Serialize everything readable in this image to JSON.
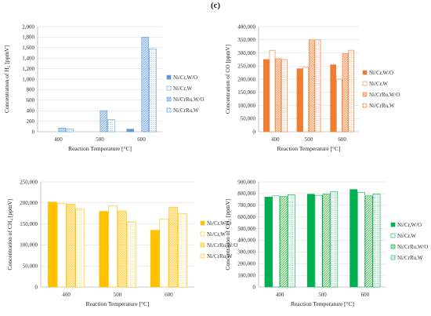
{
  "figure_label": "(c)",
  "chart_data": [
    {
      "type": "bar",
      "ylabel": "Concentration of H₂ [ppmV]",
      "xlabel": "Reaction Temperature [°C]",
      "categories": [
        "400",
        "500",
        "600"
      ],
      "ylim": [
        0,
        2000
      ],
      "ystep": 200,
      "ytick_labels": [
        "0",
        "200",
        "400",
        "600",
        "800",
        "1,000",
        "1,200",
        "1,400",
        "1,600",
        "1,800",
        "2,000"
      ],
      "grid": true,
      "legend_position": "right",
      "fill_color": "#9dc3e6",
      "edge_color": "#5b9bd5",
      "series": [
        {
          "name": "Ni/Cr,W/O",
          "style": "solid",
          "values": [
            0,
            0,
            50
          ]
        },
        {
          "name": "Ni/Cr,W",
          "style": "open",
          "values": [
            0,
            0,
            0
          ]
        },
        {
          "name": "Ni/CrRu,W/O",
          "style": "hatch",
          "values": [
            70,
            400,
            1800
          ]
        },
        {
          "name": "Ni/CrRu,W",
          "style": "dotted",
          "values": [
            50,
            230,
            1580
          ]
        }
      ]
    },
    {
      "type": "bar",
      "ylabel": "Concentration of CO [ppmV]",
      "xlabel": "Reaction Temperature [°C]",
      "categories": [
        "400",
        "500",
        "600"
      ],
      "ylim": [
        0,
        400000
      ],
      "ystep": 50000,
      "ytick_labels": [
        "0",
        "50,000",
        "100,000",
        "150,000",
        "200,000",
        "250,000",
        "300,000",
        "350,000",
        "400,000"
      ],
      "grid": true,
      "legend_position": "right",
      "fill_color": "#f4b183",
      "edge_color": "#ed7d31",
      "series": [
        {
          "name": "Ni/Cr,W/O",
          "style": "solid",
          "values": [
            275000,
            240000,
            255000
          ]
        },
        {
          "name": "Ni/Cr,W",
          "style": "open",
          "values": [
            310000,
            245000,
            200000
          ]
        },
        {
          "name": "Ni/CrRu,W/O",
          "style": "hatch",
          "values": [
            278000,
            350000,
            298000
          ]
        },
        {
          "name": "Ni/CrRu,W",
          "style": "dotted",
          "values": [
            275000,
            350000,
            310000
          ]
        }
      ]
    },
    {
      "type": "bar",
      "ylabel": "Concentration of CH₄  [ppmV]",
      "xlabel": "Reaction Temperature [°C]",
      "categories": [
        "400",
        "500",
        "600"
      ],
      "ylim": [
        0,
        250000
      ],
      "ystep": 50000,
      "ytick_labels": [
        "0",
        "50,000",
        "100,000",
        "150,000",
        "200,000",
        "250,000"
      ],
      "grid": true,
      "legend_position": "right",
      "fill_color": "#ffd966",
      "edge_color": "#ffc000",
      "series": [
        {
          "name": "Ni/Cr,W/O",
          "style": "solid",
          "values": [
            202000,
            180000,
            135000
          ]
        },
        {
          "name": "Ni/Cr,W",
          "style": "open",
          "values": [
            198000,
            193000,
            162000
          ]
        },
        {
          "name": "Ni/CrRu,W/O",
          "style": "hatch",
          "values": [
            197000,
            181000,
            190000
          ]
        },
        {
          "name": "Ni/CrRu,W",
          "style": "dotted",
          "values": [
            185000,
            155000,
            175000
          ]
        }
      ]
    },
    {
      "type": "bar",
      "ylabel": "Concentration of  CO₂ [ppmV]",
      "xlabel": "Reaction Temperature [°C]",
      "categories": [
        "400",
        "500",
        "600"
      ],
      "ylim": [
        0,
        900000
      ],
      "ystep": 100000,
      "ytick_labels": [
        "0",
        "100,000",
        "200,000",
        "300,000",
        "400,000",
        "500,000",
        "600,000",
        "700,000",
        "800,000",
        "900,000"
      ],
      "grid": true,
      "legend_position": "right",
      "fill_color": "#a9d18e",
      "edge_color": "#00b050",
      "series": [
        {
          "name": "Ni/Cr,W/O",
          "style": "solid",
          "values": [
            770000,
            795000,
            835000
          ]
        },
        {
          "name": "Ni/Cr,W",
          "style": "open",
          "values": [
            780000,
            785000,
            810000
          ]
        },
        {
          "name": "Ni/CrRu,W/O",
          "style": "hatch",
          "values": [
            775000,
            795000,
            780000
          ]
        },
        {
          "name": "Ni/CrRu,W",
          "style": "dotted",
          "values": [
            790000,
            815000,
            795000
          ]
        }
      ]
    }
  ]
}
